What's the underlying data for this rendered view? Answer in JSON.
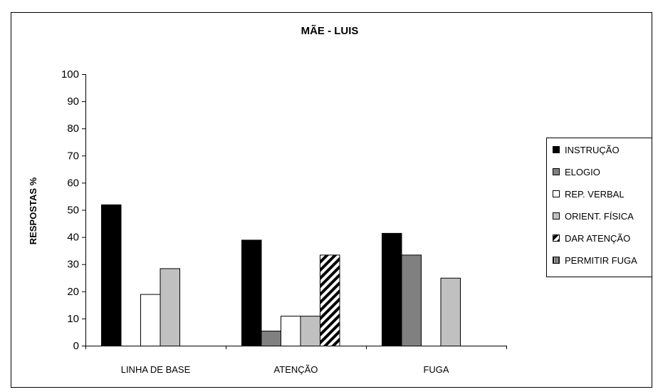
{
  "chart_data": {
    "type": "bar",
    "title": "MÃE - LUIS",
    "xlabel": "",
    "ylabel": "RESPOSTAS %",
    "ylim": [
      0,
      100
    ],
    "yticks": [
      "0",
      "10",
      "20",
      "30",
      "40",
      "50",
      "60",
      "70",
      "80",
      "90",
      "100"
    ],
    "categories": [
      "LINHA DE BASE",
      "ATENÇÃO",
      "FUGA"
    ],
    "legend_position": "right",
    "series": [
      {
        "name": "INSTRUÇÃO",
        "color": "#000000",
        "pattern": "solid",
        "values": [
          52,
          39,
          41.5
        ]
      },
      {
        "name": "ELOGIO",
        "color": "#808080",
        "pattern": "solid",
        "values": [
          0,
          5.5,
          33.5
        ]
      },
      {
        "name": "REP. VERBAL",
        "color": "#ffffff",
        "pattern": "solid",
        "values": [
          19,
          11,
          0
        ]
      },
      {
        "name": "ORIENT. FÍSICA",
        "color": "#c0c0c0",
        "pattern": "solid",
        "values": [
          28.5,
          11,
          25
        ]
      },
      {
        "name": "DAR ATENÇÃO",
        "color": "#000000",
        "pattern": "diagonal",
        "values": [
          0,
          33.5,
          0
        ]
      },
      {
        "name": "PERMITIR FUGA",
        "color": "#000000",
        "pattern": "vertical",
        "values": [
          0,
          0,
          0
        ]
      }
    ]
  }
}
